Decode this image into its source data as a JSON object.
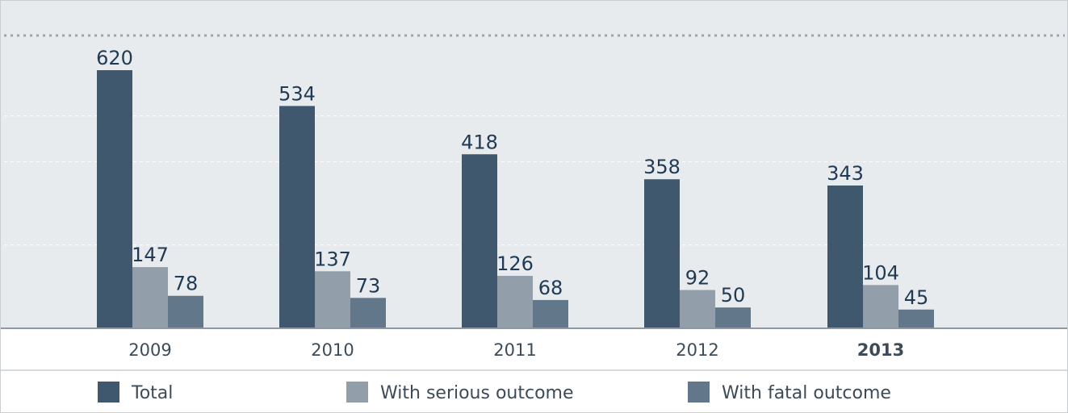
{
  "chart_data": {
    "type": "bar",
    "categories": [
      "2009",
      "2010",
      "2011",
      "2012",
      "2013"
    ],
    "highlighted_category": "2013",
    "series": [
      {
        "name": "Total",
        "values": [
          620,
          534,
          418,
          358,
          343
        ],
        "color": "#3f586e"
      },
      {
        "name": "With serious outcome",
        "values": [
          147,
          137,
          126,
          92,
          104
        ],
        "color": "#929fab"
      },
      {
        "name": "With fatal outcome",
        "values": [
          78,
          73,
          68,
          50,
          45
        ],
        "color": "#63778a"
      }
    ],
    "ylim": [
      0,
      700
    ],
    "grid": true,
    "legend_position": "bottom",
    "colors": {
      "plot_background": "#e8ebee",
      "label_text": "#1f3a52",
      "axis_text": "#3c4b57",
      "gridline": "#ffffff",
      "top_line": "#98a4af"
    }
  }
}
